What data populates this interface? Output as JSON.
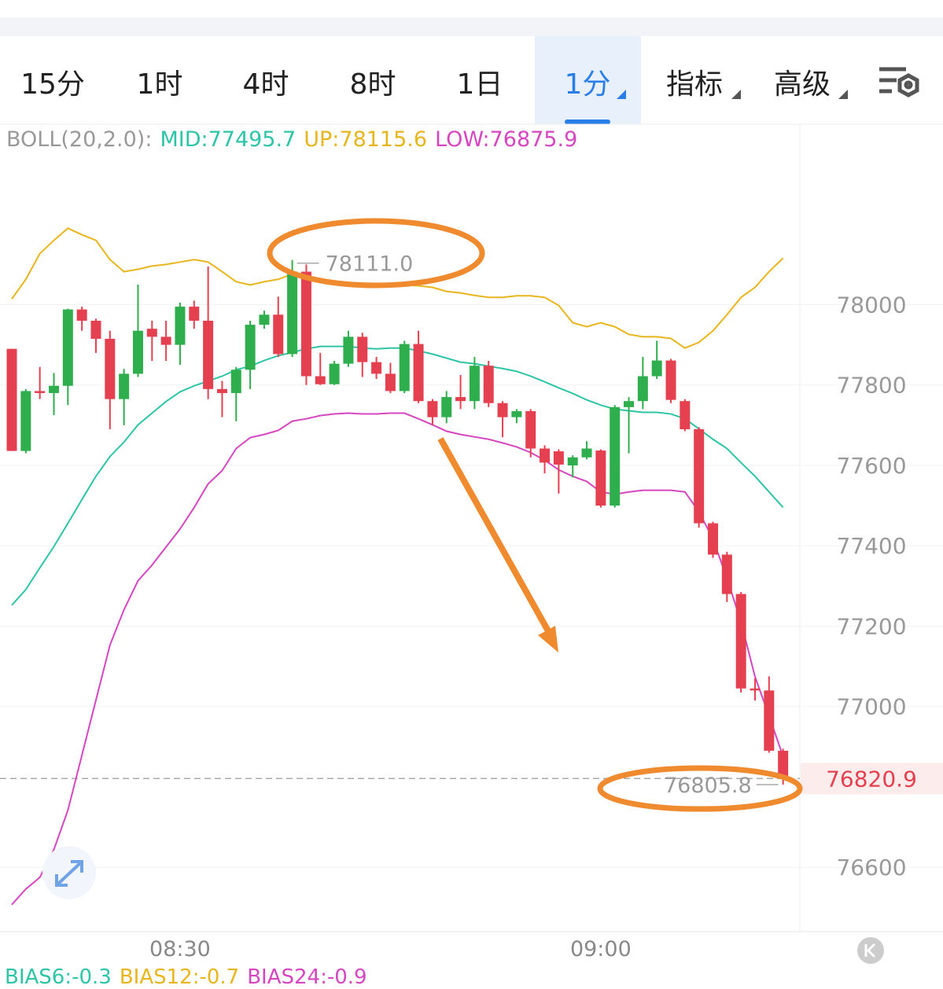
{
  "tabs": [
    "15分",
    "1时",
    "4时",
    "8时",
    "1日",
    "1分",
    "指标",
    "高级"
  ],
  "chart_data": {
    "type": "candlestick",
    "indicator": {
      "label": "BOLL(20,2.0):",
      "items": [
        {
          "text": "MID:77495.7",
          "color": "#2ec4a6"
        },
        {
          "text": "UP:78115.6",
          "color": "#e8b51c"
        },
        {
          "text": "LOW:76875.9",
          "color": "#d646c0"
        }
      ]
    },
    "categories": [
      null,
      null,
      null,
      null,
      null,
      null,
      null,
      null,
      null,
      null,
      null,
      null,
      "08:30",
      null,
      null,
      null,
      null,
      null,
      null,
      null,
      null,
      null,
      null,
      null,
      null,
      null,
      null,
      null,
      null,
      null,
      null,
      null,
      null,
      null,
      null,
      null,
      null,
      null,
      null,
      null,
      null,
      null,
      "09:00",
      null,
      null,
      null,
      null,
      null,
      null,
      null,
      null,
      null,
      null,
      null,
      null,
      null
    ],
    "open": [
      77890,
      77636,
      77785,
      77780,
      77798,
      77988,
      77960,
      77915,
      77765,
      77828,
      77940,
      77920,
      77900,
      77995,
      77960,
      77790,
      77780,
      77838,
      77950,
      77975,
      77877,
      78082,
      77822,
      77802,
      77853,
      77920,
      77857,
      77828,
      77785,
      77902,
      77760,
      77720,
      77770,
      77760,
      77848,
      77755,
      77720,
      77735,
      77642,
      77635,
      77600,
      77620,
      77637,
      77500,
      77745,
      77760,
      77822,
      77861,
      77760,
      77690,
      77456,
      77378,
      77280,
      77045,
      77040,
      76890
    ],
    "high": [
      77890,
      77790,
      77845,
      77830,
      77990,
      77995,
      77965,
      77935,
      77840,
      78050,
      77960,
      77960,
      78005,
      78010,
      78095,
      77810,
      77845,
      77960,
      77985,
      78020,
      78111,
      78100,
      77880,
      77860,
      77935,
      77930,
      77870,
      77855,
      77910,
      77935,
      77765,
      77785,
      77825,
      77870,
      77860,
      77760,
      77740,
      77740,
      77650,
      77640,
      77625,
      77660,
      77640,
      77750,
      77770,
      77870,
      77910,
      77865,
      77765,
      77695,
      77460,
      77385,
      77285,
      77070,
      77075,
      76895
    ],
    "low": [
      77636,
      77630,
      77765,
      77725,
      77750,
      77935,
      77880,
      77690,
      77700,
      77820,
      77860,
      77860,
      77850,
      77940,
      77765,
      77720,
      77710,
      77790,
      77940,
      77870,
      77870,
      77800,
      77800,
      77800,
      77845,
      77820,
      77815,
      77780,
      77780,
      77755,
      77700,
      77705,
      77740,
      77740,
      77745,
      77670,
      77705,
      77620,
      77580,
      77530,
      77570,
      77615,
      77495,
      77495,
      77630,
      77740,
      77815,
      77755,
      77685,
      77445,
      77370,
      77260,
      77035,
      77015,
      76885,
      76805.8
    ],
    "close": [
      77636,
      77785,
      77780,
      77798,
      77988,
      77960,
      77915,
      77765,
      77828,
      77935,
      77920,
      77900,
      77995,
      77960,
      77790,
      77780,
      77838,
      77950,
      77975,
      77877,
      78082,
      77822,
      77802,
      77853,
      77920,
      77857,
      77828,
      77785,
      77902,
      77760,
      77720,
      77770,
      77760,
      77848,
      77755,
      77720,
      77735,
      77642,
      77607,
      77602,
      77620,
      77642,
      77500,
      77745,
      77760,
      77822,
      77861,
      77763,
      77690,
      77456,
      77378,
      77280,
      77045,
      77040,
      76890,
      76820.9
    ],
    "up_color": "#2fae4e",
    "down_color": "#e5404f",
    "series": [
      {
        "name": "MID",
        "color": "#2ec4a6",
        "values": [
          77252,
          77291,
          77345,
          77398,
          77456,
          77515,
          77573,
          77622,
          77658,
          77701,
          77730,
          77759,
          77783,
          77798,
          77810,
          77822,
          77838,
          77847,
          77861,
          77873,
          77881,
          77890,
          77896,
          77896,
          77896,
          77892,
          77890,
          77892,
          77892,
          77885,
          77877,
          77867,
          77857,
          77853,
          77847,
          77841,
          77834,
          77822,
          77808,
          77793,
          77779,
          77763,
          77750,
          77740,
          77736,
          77732,
          77732,
          77728,
          77716,
          77691,
          77665,
          77642,
          77607,
          77573,
          77534,
          77495.7
        ]
      },
      {
        "name": "UP",
        "color": "#e8b51c",
        "values": [
          78014,
          78063,
          78127,
          78160,
          78190,
          78174,
          78160,
          78112,
          78082,
          78088,
          78096,
          78100,
          78106,
          78112,
          78106,
          78082,
          78057,
          78049,
          78057,
          78063,
          78076,
          78072,
          78063,
          78057,
          78053,
          78053,
          78049,
          78049,
          78049,
          78047,
          78043,
          78033,
          78029,
          78023,
          78018,
          78018,
          78022,
          78022,
          78018,
          77998,
          77955,
          77945,
          77955,
          77945,
          77926,
          77920,
          77920,
          77916,
          77892,
          77906,
          77935,
          77975,
          78018,
          78043,
          78082,
          78115.6
        ]
      },
      {
        "name": "LOW",
        "color": "#d646c0",
        "values": [
          76507,
          76546,
          76575,
          76644,
          76742,
          76879,
          77016,
          77153,
          77241,
          77313,
          77352,
          77397,
          77442,
          77495,
          77554,
          77587,
          77642,
          77669,
          77677,
          77687,
          77710,
          77716,
          77724,
          77728,
          77730,
          77728,
          77728,
          77730,
          77730,
          77716,
          77701,
          77685,
          77677,
          77671,
          77665,
          77656,
          77646,
          77632,
          77613,
          77589,
          77573,
          77560,
          77534,
          77528,
          77534,
          77538,
          77538,
          77538,
          77534,
          77485,
          77417,
          77319,
          77211,
          77074,
          76977,
          76875.9
        ]
      }
    ],
    "ylim": [
      76440,
      78445
    ],
    "yticks": [
      76600,
      77000,
      77200,
      77400,
      77600,
      77800,
      78000
    ],
    "grid": true,
    "high_marker": {
      "value": 78111,
      "label": "78111.0"
    },
    "low_marker": 76805.8,
    "last_price": 76820.9
  },
  "bias": [
    {
      "text": "BIAS6:-0.3",
      "color": "#2ec4a6"
    },
    {
      "text": "BIAS12:-0.7",
      "color": "#e8b51c"
    },
    {
      "text": "BIAS24:-0.9",
      "color": "#d646c0"
    }
  ]
}
